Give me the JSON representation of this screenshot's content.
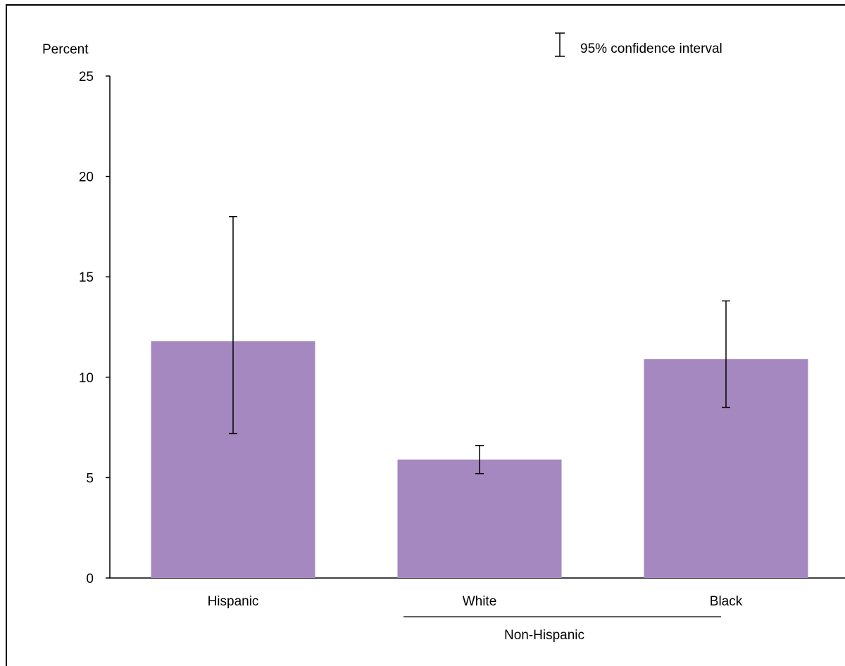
{
  "chart_data": {
    "type": "bar",
    "ylabel": "Percent",
    "ylim": [
      0,
      25
    ],
    "yticks": [
      0,
      5,
      10,
      15,
      20,
      25
    ],
    "categories": [
      "Hispanic",
      "White",
      "Black"
    ],
    "values": [
      11.8,
      5.9,
      10.9
    ],
    "ci_low": [
      7.2,
      5.2,
      8.5
    ],
    "ci_high": [
      18.0,
      6.6,
      13.8
    ],
    "group_label": "Non-Hispanic",
    "legend_text": "95% confidence interval",
    "bar_color": "#a588bf"
  }
}
